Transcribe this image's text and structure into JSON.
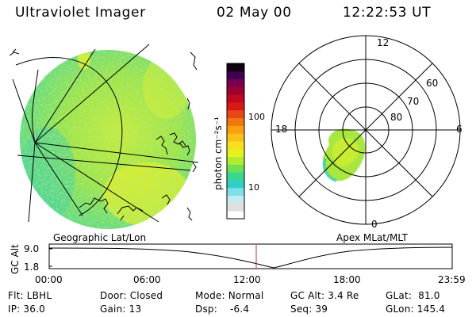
{
  "header": {
    "title": "Ultraviolet Imager",
    "date": "02 May 00",
    "time": "12:22:53 UT"
  },
  "colorbar": {
    "unit_label": "photon cm⁻²s⁻¹",
    "tick_high": "100",
    "tick_low": "10",
    "colors": [
      "#ffffff",
      "#e0e0e0",
      "#c8e8f0",
      "#80e0e8",
      "#30d0c8",
      "#38d890",
      "#70e050",
      "#b0ec30",
      "#e8f020",
      "#f8e020",
      "#f8c018",
      "#f8a010",
      "#f07810",
      "#e84818",
      "#d81818",
      "#c00820",
      "#a00030",
      "#780050",
      "#400050",
      "#100010"
    ]
  },
  "left_panel": {
    "caption": "Geographic Lat/Lon"
  },
  "right_panel": {
    "caption": "Apex MLat/MLT",
    "mlt_labels": {
      "top": "12",
      "left": "18",
      "right": "6",
      "bottom": "0"
    },
    "lat_labels": [
      "60",
      "70",
      "80"
    ]
  },
  "altitude_plot": {
    "ylabel": "GC Alt",
    "y_ticks": [
      "9.0",
      "1.8"
    ],
    "x_ticks": [
      "00:00",
      "06:00",
      "12:00",
      "18:00",
      "23:59"
    ],
    "marker_color": "#c03030"
  },
  "info": {
    "row1": {
      "filter": "Flt: LBHL",
      "door": "Door: Closed",
      "mode": "Mode: Normal",
      "gc_alt": "GC Alt: 3.4 Re",
      "glat": "GLat:  81.0"
    },
    "row2": {
      "ip": "IP: 36.0",
      "gain": "Gain: 13",
      "dsp": "Dsp:    -6.4",
      "seq": "Seq: 39",
      "glon": "GLon: 145.4"
    }
  }
}
